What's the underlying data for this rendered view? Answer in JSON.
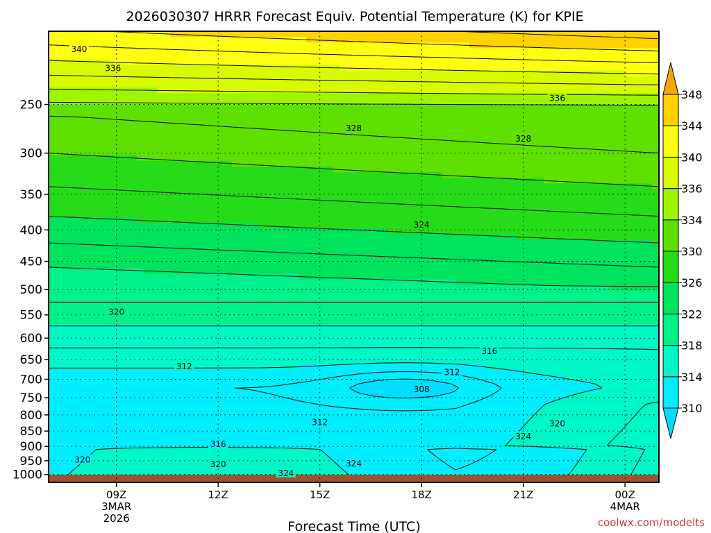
{
  "chart_data": {
    "type": "heatmap",
    "title": "2026030307 HRRR Forecast Equiv. Potential Temperature (K) for KPIE",
    "xlabel": "Forecast Time (UTC)",
    "ylabel": "",
    "x_ticks": [
      {
        "hour": 9,
        "lines": [
          "09Z",
          "3MAR",
          "2026"
        ]
      },
      {
        "hour": 12,
        "lines": [
          "12Z"
        ]
      },
      {
        "hour": 15,
        "lines": [
          "15Z"
        ]
      },
      {
        "hour": 18,
        "lines": [
          "18Z"
        ]
      },
      {
        "hour": 21,
        "lines": [
          "21Z"
        ]
      },
      {
        "hour": 24,
        "lines": [
          "00Z",
          "4MAR"
        ]
      }
    ],
    "xlim": [
      7,
      25
    ],
    "y_scale": "log-pressure",
    "ylim": [
      1030,
      190
    ],
    "y_ticks": [
      250,
      300,
      350,
      400,
      450,
      500,
      550,
      600,
      650,
      700,
      750,
      800,
      850,
      900,
      950,
      1000
    ],
    "colorbar": {
      "levels": [
        310,
        314,
        318,
        322,
        326,
        330,
        334,
        336,
        340,
        344,
        348
      ],
      "colors": [
        "#00eeff",
        "#00f7c8",
        "#00f08a",
        "#00e35c",
        "#26dc18",
        "#5ee000",
        "#9ff500",
        "#d9fb00",
        "#ffff10",
        "#ffd200",
        "#ffad00",
        "#f59a00"
      ],
      "under_color": "#00ddff",
      "over_color": "#f5a500"
    },
    "ground_color": "#a0522d",
    "contour_labels": [
      {
        "text": "340",
        "hour": 7.9,
        "p": 203
      },
      {
        "text": "336",
        "hour": 8.9,
        "p": 218
      },
      {
        "text": "336",
        "hour": 22.0,
        "p": 244
      },
      {
        "text": "328",
        "hour": 16.0,
        "p": 273
      },
      {
        "text": "328",
        "hour": 21.0,
        "p": 284
      },
      {
        "text": "324",
        "hour": 18.0,
        "p": 392
      },
      {
        "text": "320",
        "hour": 9.0,
        "p": 543
      },
      {
        "text": "316",
        "hour": 20.0,
        "p": 629
      },
      {
        "text": "312",
        "hour": 11.0,
        "p": 666
      },
      {
        "text": "312",
        "hour": 18.9,
        "p": 681
      },
      {
        "text": "308",
        "hour": 18.0,
        "p": 726
      },
      {
        "text": "312",
        "hour": 15.0,
        "p": 821
      },
      {
        "text": "320",
        "hour": 22.0,
        "p": 826
      },
      {
        "text": "324",
        "hour": 21.0,
        "p": 866
      },
      {
        "text": "316",
        "hour": 12.0,
        "p": 892
      },
      {
        "text": "320",
        "hour": 8.0,
        "p": 945
      },
      {
        "text": "320",
        "hour": 12.0,
        "p": 961
      },
      {
        "text": "324",
        "hour": 16.0,
        "p": 959
      },
      {
        "text": "324",
        "hour": 14.0,
        "p": 995
      }
    ],
    "credit": "coolwx.com/modelts"
  }
}
